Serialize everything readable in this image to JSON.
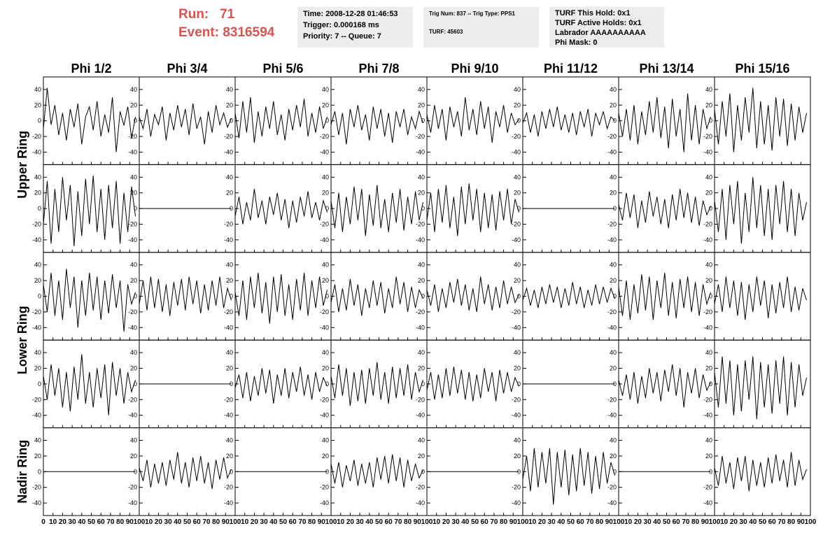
{
  "header": {
    "run_label": "Run:",
    "run": "71",
    "event_label": "Event:",
    "event": "8316594",
    "time_box": [
      "Time: 2008-12-28 01:46:53",
      "Trigger: 0.000168 ms",
      "Priority: 7 -- Queue: 7"
    ],
    "trig_box": [
      "Trig Num: 837 -- Trig Type: PPS1",
      "TURF: 45603"
    ],
    "turf_box": [
      "TURF This Hold: 0x1",
      "TURF Active Holds: 0x1",
      "Labrador AAAAAAAAAA",
      "Phi Mask: 0"
    ]
  },
  "chart_data": {
    "type": "line",
    "columns": [
      "Phi 1/2",
      "Phi 3/4",
      "Phi 5/6",
      "Phi 7/8",
      "Phi 9/10",
      "Phi 11/12",
      "Phi 13/14",
      "Phi 15/16"
    ],
    "rows": [
      "Upper Ring",
      "Lower Ring",
      "Nadir Ring"
    ],
    "xlim": [
      0,
      100
    ],
    "xticks": [
      0,
      10,
      20,
      30,
      40,
      50,
      60,
      70,
      80,
      90,
      100
    ],
    "ylim": [
      -56,
      56
    ],
    "yticks": [
      -40,
      -20,
      0,
      20,
      40
    ],
    "color": "#000000",
    "x": [
      0,
      4,
      8,
      12,
      16,
      20,
      24,
      28,
      32,
      36,
      40,
      44,
      48,
      52,
      56,
      60,
      64,
      68,
      72,
      76,
      80,
      84,
      88,
      92,
      96
    ],
    "series": [
      {
        "values": [
          -10,
          42,
          -5,
          20,
          -18,
          10,
          -25,
          15,
          -8,
          22,
          -30,
          5,
          18,
          -12,
          25,
          -20,
          8,
          -15,
          30,
          -40,
          12,
          -6,
          18,
          -22,
          5
        ]
      },
      {
        "values": [
          5,
          -10,
          15,
          -20,
          8,
          -5,
          18,
          -25,
          10,
          -12,
          20,
          -8,
          15,
          -18,
          22,
          -10,
          5,
          -30,
          12,
          -15,
          20,
          -5,
          10,
          -8,
          3
        ]
      },
      {
        "values": [
          10,
          -22,
          25,
          -15,
          30,
          -28,
          12,
          -20,
          18,
          -10,
          25,
          -18,
          8,
          -25,
          15,
          -12,
          20,
          -8,
          28,
          -20,
          10,
          -15,
          18,
          -10,
          5
        ]
      },
      {
        "values": [
          -5,
          12,
          -18,
          10,
          -30,
          15,
          -8,
          20,
          -12,
          8,
          -25,
          18,
          -10,
          15,
          -20,
          10,
          -28,
          12,
          -8,
          15,
          -18,
          5,
          -10,
          12,
          -3
        ]
      },
      {
        "values": [
          8,
          -15,
          20,
          -10,
          15,
          -25,
          18,
          -8,
          12,
          -20,
          30,
          -12,
          15,
          -18,
          25,
          -10,
          18,
          -28,
          12,
          -8,
          20,
          -15,
          10,
          -5,
          2
        ]
      },
      {
        "values": [
          -3,
          10,
          -15,
          8,
          -20,
          12,
          -10,
          15,
          -8,
          18,
          -12,
          8,
          -15,
          10,
          -18,
          12,
          -8,
          15,
          -20,
          10,
          -5,
          12,
          -10,
          5,
          0
        ]
      },
      {
        "values": [
          10,
          -20,
          15,
          -25,
          20,
          -30,
          12,
          -18,
          25,
          -15,
          30,
          -22,
          18,
          -35,
          28,
          -20,
          15,
          -40,
          35,
          -25,
          20,
          -30,
          15,
          -10,
          5
        ]
      },
      {
        "values": [
          15,
          -30,
          25,
          -20,
          35,
          -40,
          20,
          -25,
          30,
          -15,
          42,
          -35,
          25,
          -30,
          20,
          -38,
          30,
          -20,
          28,
          -32,
          22,
          -25,
          18,
          -15,
          10
        ]
      },
      {
        "values": [
          -20,
          35,
          -45,
          25,
          -30,
          40,
          -15,
          30,
          -48,
          22,
          -35,
          38,
          -20,
          42,
          -30,
          25,
          -40,
          30,
          -25,
          35,
          -45,
          20,
          -30,
          28,
          -10
        ]
      },
      {
        "values": [
          0,
          0,
          0,
          0,
          0,
          0,
          0,
          0,
          0,
          0,
          0,
          0,
          0,
          0,
          0,
          0,
          0,
          0,
          0,
          0,
          0,
          0,
          0,
          0,
          0
        ]
      },
      {
        "values": [
          -10,
          15,
          -20,
          8,
          -15,
          25,
          -12,
          10,
          -20,
          15,
          -8,
          20,
          -15,
          12,
          -25,
          10,
          -18,
          15,
          -10,
          22,
          -12,
          8,
          -15,
          10,
          -5
        ]
      },
      {
        "values": [
          10,
          -25,
          20,
          -30,
          15,
          -20,
          28,
          -15,
          25,
          -35,
          18,
          -22,
          30,
          -25,
          12,
          -30,
          20,
          -18,
          25,
          -28,
          15,
          -20,
          22,
          -15,
          8
        ]
      },
      {
        "values": [
          -15,
          20,
          -30,
          25,
          -18,
          30,
          -25,
          15,
          -35,
          28,
          -20,
          32,
          -15,
          25,
          -30,
          20,
          -25,
          18,
          -28,
          22,
          -15,
          25,
          -20,
          12,
          -5
        ]
      },
      {
        "values": [
          0,
          0,
          0,
          0,
          0,
          0,
          0,
          0,
          0,
          0,
          0,
          0,
          0,
          0,
          0,
          0,
          0,
          0,
          0,
          0,
          0,
          0,
          0,
          0,
          0
        ]
      },
      {
        "values": [
          5,
          -15,
          20,
          -12,
          18,
          -25,
          10,
          -18,
          22,
          -10,
          15,
          -20,
          12,
          -25,
          18,
          -15,
          25,
          -12,
          20,
          -18,
          15,
          -22,
          10,
          -8,
          3
        ]
      },
      {
        "values": [
          10,
          -30,
          25,
          -40,
          30,
          -20,
          35,
          -45,
          20,
          -30,
          40,
          -25,
          30,
          -35,
          25,
          -40,
          30,
          -20,
          35,
          -30,
          25,
          -35,
          20,
          -15,
          8
        ]
      },
      {
        "values": [
          15,
          -20,
          30,
          -25,
          20,
          -30,
          35,
          -15,
          25,
          -40,
          20,
          -25,
          30,
          -18,
          25,
          -30,
          20,
          -22,
          28,
          -15,
          20,
          -45,
          15,
          -10,
          5
        ]
      },
      {
        "values": [
          -10,
          20,
          -18,
          25,
          -15,
          22,
          -20,
          15,
          -25,
          18,
          -12,
          22,
          -18,
          25,
          -10,
          20,
          -22,
          15,
          -18,
          20,
          -12,
          25,
          -15,
          10,
          -5
        ]
      },
      {
        "values": [
          5,
          -25,
          20,
          -30,
          25,
          -15,
          30,
          -22,
          18,
          -35,
          25,
          -20,
          28,
          -25,
          15,
          -30,
          22,
          -18,
          30,
          -25,
          20,
          -15,
          25,
          -12,
          8
        ]
      },
      {
        "values": [
          -8,
          15,
          -20,
          10,
          -18,
          22,
          -12,
          15,
          -25,
          10,
          -15,
          20,
          -12,
          18,
          -22,
          10,
          -15,
          25,
          -10,
          18,
          -20,
          12,
          -15,
          8,
          -3
        ]
      },
      {
        "values": [
          8,
          -12,
          15,
          -20,
          10,
          -15,
          18,
          -8,
          22,
          -12,
          15,
          -18,
          10,
          -20,
          25,
          -10,
          15,
          -18,
          12,
          -15,
          20,
          -10,
          12,
          -8,
          2
        ]
      },
      {
        "values": [
          -5,
          10,
          -12,
          8,
          -15,
          12,
          -10,
          15,
          -8,
          12,
          -15,
          10,
          -12,
          18,
          -10,
          12,
          -15,
          8,
          -12,
          15,
          -10,
          12,
          -8,
          10,
          -3
        ]
      },
      {
        "values": [
          12,
          -25,
          20,
          -30,
          15,
          -22,
          28,
          -18,
          25,
          -30,
          20,
          -15,
          30,
          -25,
          18,
          -28,
          22,
          -15,
          25,
          -20,
          18,
          -25,
          15,
          -10,
          5
        ]
      },
      {
        "values": [
          -10,
          15,
          -20,
          25,
          -15,
          20,
          -25,
          18,
          -30,
          15,
          -20,
          25,
          -12,
          20,
          -28,
          15,
          -22,
          18,
          -15,
          25,
          -20,
          12,
          -18,
          10,
          -5
        ]
      },
      {
        "values": [
          10,
          -20,
          25,
          -15,
          20,
          -30,
          15,
          -35,
          22,
          -20,
          38,
          -25,
          15,
          -30,
          20,
          -18,
          25,
          -40,
          28,
          -15,
          20,
          -25,
          15,
          -10,
          5
        ]
      },
      {
        "values": [
          0,
          0,
          0,
          0,
          0,
          0,
          0,
          0,
          0,
          0,
          0,
          0,
          0,
          0,
          0,
          0,
          0,
          0,
          0,
          0,
          0,
          0,
          0,
          0,
          0
        ]
      },
      {
        "values": [
          -5,
          12,
          -18,
          15,
          -22,
          10,
          -15,
          20,
          -12,
          18,
          -25,
          12,
          -15,
          20,
          -18,
          15,
          -10,
          22,
          -15,
          12,
          -20,
          15,
          -10,
          8,
          -3
        ]
      },
      {
        "values": [
          10,
          -18,
          25,
          -15,
          20,
          -28,
          15,
          -22,
          18,
          -25,
          20,
          -15,
          28,
          -20,
          15,
          -25,
          22,
          -18,
          20,
          -15,
          25,
          -20,
          15,
          -10,
          5
        ]
      },
      {
        "values": [
          -8,
          15,
          -20,
          12,
          -18,
          20,
          -15,
          22,
          -12,
          18,
          -20,
          15,
          -22,
          12,
          -18,
          20,
          -10,
          15,
          -22,
          18,
          -12,
          15,
          -10,
          8,
          -3
        ]
      },
      {
        "values": [
          0,
          0,
          0,
          0,
          0,
          0,
          0,
          0,
          0,
          0,
          0,
          0,
          0,
          0,
          0,
          0,
          0,
          0,
          0,
          0,
          0,
          0,
          0,
          0,
          0
        ]
      },
      {
        "values": [
          5,
          -15,
          12,
          -20,
          15,
          -25,
          10,
          -18,
          20,
          -12,
          15,
          -22,
          18,
          -10,
          25,
          -15,
          20,
          -30,
          15,
          -12,
          20,
          -18,
          12,
          -8,
          2
        ]
      },
      {
        "values": [
          15,
          -30,
          35,
          -25,
          30,
          -40,
          25,
          -35,
          30,
          -20,
          35,
          -45,
          28,
          -30,
          25,
          -38,
          30,
          -25,
          35,
          -40,
          28,
          -30,
          25,
          -15,
          8
        ]
      },
      {
        "values": [
          0,
          0,
          0,
          0,
          0,
          0,
          0,
          0,
          0,
          0,
          0,
          0,
          0,
          0,
          0,
          0,
          0,
          0,
          0,
          0,
          0,
          0,
          0,
          0,
          0
        ]
      },
      {
        "values": [
          5,
          -12,
          15,
          -20,
          10,
          -15,
          12,
          -18,
          15,
          -10,
          25,
          -15,
          12,
          -20,
          18,
          -12,
          20,
          -15,
          12,
          -22,
          15,
          -10,
          18,
          -8,
          3
        ]
      },
      {
        "values": [
          0,
          0,
          0,
          0,
          0,
          0,
          0,
          0,
          0,
          0,
          0,
          0,
          0,
          0,
          0,
          0,
          0,
          0,
          0,
          0,
          0,
          0,
          0,
          0,
          0
        ]
      },
      {
        "values": [
          10,
          -15,
          12,
          -20,
          8,
          -12,
          15,
          -18,
          10,
          -15,
          12,
          -20,
          18,
          -10,
          20,
          -15,
          22,
          -12,
          18,
          -20,
          15,
          -12,
          10,
          -8,
          2
        ]
      },
      {
        "values": [
          0,
          0,
          0,
          0,
          0,
          0,
          0,
          0,
          0,
          0,
          0,
          0,
          0,
          0,
          0,
          0,
          0,
          0,
          0,
          0,
          0,
          0,
          0,
          0,
          0
        ]
      },
      {
        "values": [
          -10,
          20,
          -25,
          30,
          -20,
          25,
          -15,
          30,
          -42,
          25,
          -20,
          28,
          -30,
          22,
          -25,
          30,
          -18,
          25,
          -28,
          20,
          -22,
          25,
          -15,
          12,
          -5
        ]
      },
      {
        "values": [
          0,
          0,
          0,
          0,
          0,
          0,
          0,
          0,
          0,
          0,
          0,
          0,
          0,
          0,
          0,
          0,
          0,
          0,
          0,
          0,
          0,
          0,
          0,
          0,
          0
        ]
      },
      {
        "values": [
          5,
          -18,
          20,
          -15,
          12,
          -22,
          18,
          -12,
          20,
          -25,
          15,
          -18,
          12,
          -20,
          18,
          -15,
          22,
          -12,
          15,
          -20,
          25,
          -18,
          15,
          -10,
          3
        ]
      }
    ]
  }
}
